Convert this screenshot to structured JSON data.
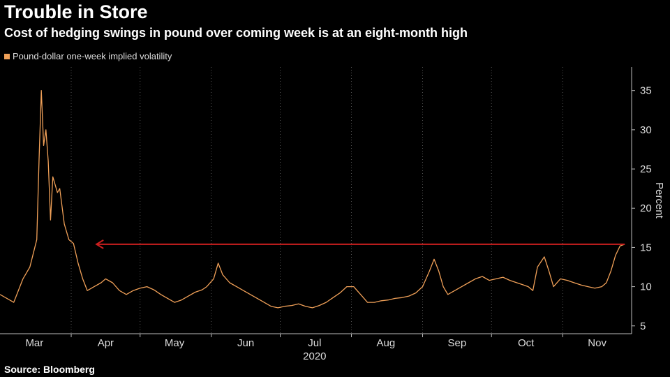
{
  "header": {
    "title": "Trouble in Store",
    "subtitle": "Cost of hedging swings in pound over coming week is at an eight-month high"
  },
  "legend": {
    "label": "Pound-dollar one-week implied volatility",
    "color": "#f0a058"
  },
  "source": "Source: Bloomberg",
  "chart_data": {
    "type": "line",
    "ylabel": "Percent",
    "ylim": [
      4,
      38
    ],
    "yticks": [
      5,
      10,
      15,
      20,
      25,
      30,
      35
    ],
    "xlim": [
      0,
      275
    ],
    "x_ticks": [
      {
        "label": "Mar",
        "x": 15
      },
      {
        "label": "Apr",
        "x": 46
      },
      {
        "label": "May",
        "x": 76
      },
      {
        "label": "Jun",
        "x": 107
      },
      {
        "label": "Jul",
        "x": 137
      },
      {
        "label": "Aug",
        "x": 168
      },
      {
        "label": "Sep",
        "x": 199
      },
      {
        "label": "Oct",
        "x": 229
      },
      {
        "label": "Nov",
        "x": 260
      }
    ],
    "year_label": "2020",
    "series": [
      {
        "color": "#f0a058",
        "points": [
          [
            0,
            9.0
          ],
          [
            6,
            8.0
          ],
          [
            10,
            11.0
          ],
          [
            13,
            12.5
          ],
          [
            16,
            16.0
          ],
          [
            17,
            26.0
          ],
          [
            18,
            35.0
          ],
          [
            19,
            28.0
          ],
          [
            20,
            30.0
          ],
          [
            21,
            26.0
          ],
          [
            22,
            18.5
          ],
          [
            23,
            24.0
          ],
          [
            25,
            22.0
          ],
          [
            26,
            22.5
          ],
          [
            28,
            18.0
          ],
          [
            30,
            16.0
          ],
          [
            32,
            15.5
          ],
          [
            34,
            13.0
          ],
          [
            36,
            11.0
          ],
          [
            38,
            9.5
          ],
          [
            41,
            10.0
          ],
          [
            44,
            10.5
          ],
          [
            46,
            11.0
          ],
          [
            49,
            10.5
          ],
          [
            52,
            9.5
          ],
          [
            55,
            9.0
          ],
          [
            58,
            9.5
          ],
          [
            61,
            9.8
          ],
          [
            64,
            10.0
          ],
          [
            67,
            9.6
          ],
          [
            70,
            9.0
          ],
          [
            73,
            8.5
          ],
          [
            76,
            8.0
          ],
          [
            79,
            8.3
          ],
          [
            82,
            8.8
          ],
          [
            85,
            9.3
          ],
          [
            88,
            9.6
          ],
          [
            90,
            10.0
          ],
          [
            93,
            11.0
          ],
          [
            95,
            13.0
          ],
          [
            97,
            11.5
          ],
          [
            100,
            10.5
          ],
          [
            103,
            10.0
          ],
          [
            106,
            9.5
          ],
          [
            109,
            9.0
          ],
          [
            112,
            8.5
          ],
          [
            115,
            8.0
          ],
          [
            118,
            7.5
          ],
          [
            121,
            7.3
          ],
          [
            124,
            7.5
          ],
          [
            127,
            7.6
          ],
          [
            130,
            7.8
          ],
          [
            133,
            7.5
          ],
          [
            136,
            7.3
          ],
          [
            139,
            7.6
          ],
          [
            142,
            8.0
          ],
          [
            145,
            8.6
          ],
          [
            148,
            9.2
          ],
          [
            151,
            10.0
          ],
          [
            154,
            10.0
          ],
          [
            157,
            9.0
          ],
          [
            160,
            8.0
          ],
          [
            163,
            8.0
          ],
          [
            166,
            8.2
          ],
          [
            169,
            8.3
          ],
          [
            172,
            8.5
          ],
          [
            175,
            8.6
          ],
          [
            178,
            8.8
          ],
          [
            181,
            9.2
          ],
          [
            184,
            10.0
          ],
          [
            187,
            12.0
          ],
          [
            189,
            13.5
          ],
          [
            191,
            12.0
          ],
          [
            193,
            10.0
          ],
          [
            195,
            9.0
          ],
          [
            198,
            9.5
          ],
          [
            201,
            10.0
          ],
          [
            204,
            10.5
          ],
          [
            207,
            11.0
          ],
          [
            210,
            11.3
          ],
          [
            213,
            10.8
          ],
          [
            216,
            11.0
          ],
          [
            219,
            11.2
          ],
          [
            222,
            10.8
          ],
          [
            225,
            10.5
          ],
          [
            228,
            10.2
          ],
          [
            230,
            10.0
          ],
          [
            232,
            9.5
          ],
          [
            234,
            12.5
          ],
          [
            237,
            13.8
          ],
          [
            239,
            12.0
          ],
          [
            241,
            10.0
          ],
          [
            244,
            11.0
          ],
          [
            247,
            10.8
          ],
          [
            250,
            10.5
          ],
          [
            253,
            10.2
          ],
          [
            256,
            10.0
          ],
          [
            259,
            9.8
          ],
          [
            262,
            10.0
          ],
          [
            264,
            10.5
          ],
          [
            266,
            12.0
          ],
          [
            268,
            14.0
          ],
          [
            270,
            15.2
          ],
          [
            272,
            15.4
          ]
        ]
      }
    ],
    "annotation": {
      "type": "arrow",
      "y": 15.4,
      "x_from": 272,
      "x_to": 42,
      "color": "#cc1f1f"
    }
  }
}
